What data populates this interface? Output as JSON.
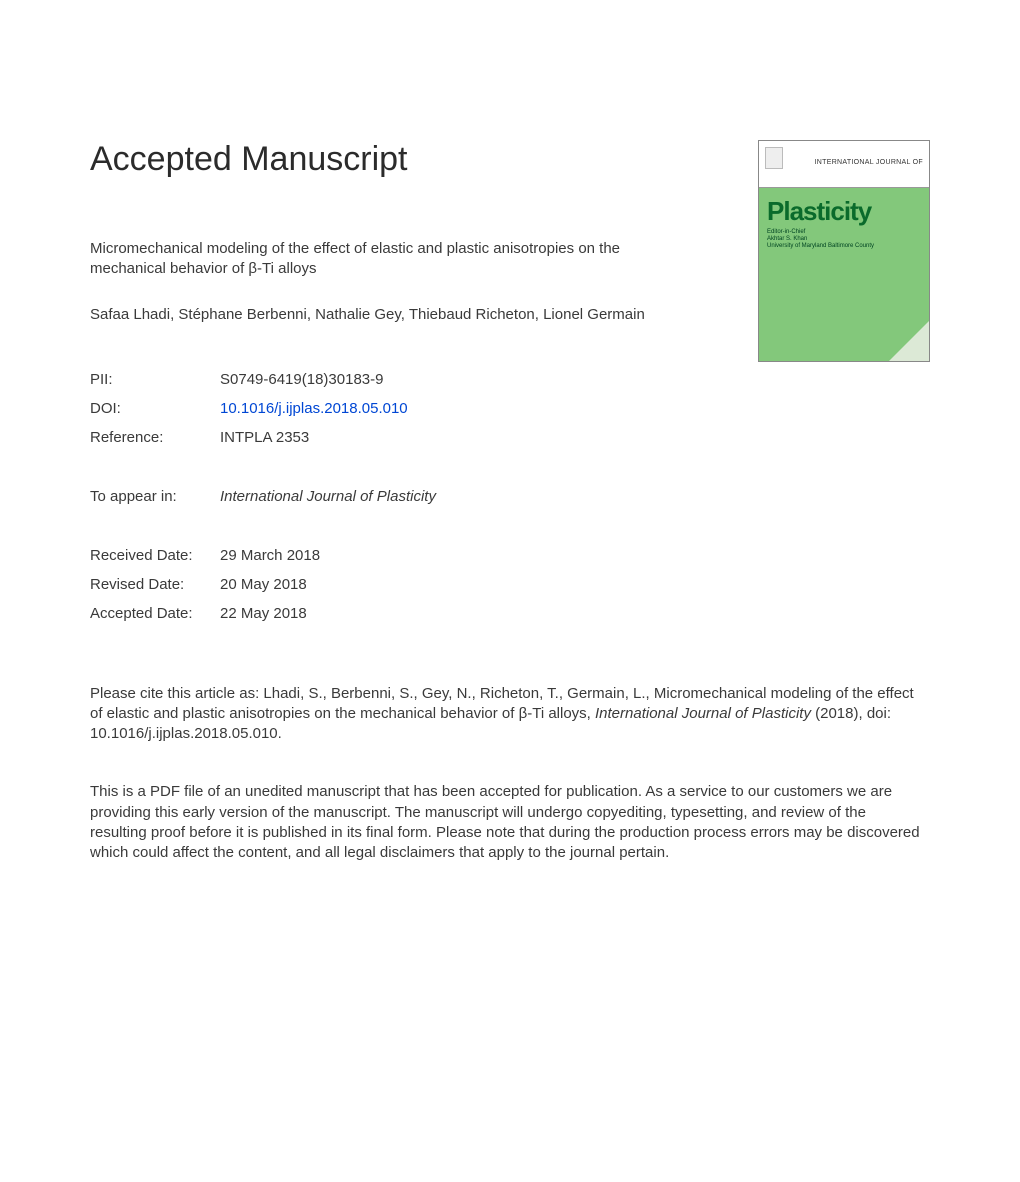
{
  "heading": "Accepted Manuscript",
  "article": {
    "title": "Micromechanical modeling of the effect of elastic and plastic anisotropies on the mechanical behavior of β-Ti alloys",
    "authors": "Safaa Lhadi, Stéphane Berbenni, Nathalie Gey, Thiebaud Richeton, Lionel Germain"
  },
  "meta": {
    "pii_label": "PII:",
    "pii_value": "S0749-6419(18)30183-9",
    "doi_label": "DOI:",
    "doi_value": "10.1016/j.ijplas.2018.05.010",
    "reference_label": "Reference:",
    "reference_value": "INTPLA 2353",
    "toappear_label": "To appear in:",
    "toappear_value": "International Journal of Plasticity",
    "received_label": "Received Date:",
    "received_value": "29 March 2018",
    "revised_label": "Revised Date:",
    "revised_value": "20 May 2018",
    "accepted_label": "Accepted Date:",
    "accepted_value": "22 May 2018"
  },
  "citation": {
    "prefix": "Please cite this article as: Lhadi, S., Berbenni, S., Gey, N., Richeton, T., Germain, L., Micromechanical modeling of the effect of elastic and plastic anisotropies on the mechanical behavior of β-Ti alloys, ",
    "journal": "International Journal of Plasticity",
    "suffix": " (2018), doi: 10.1016/j.ijplas.2018.05.010."
  },
  "disclaimer": "This is a PDF file of an unedited manuscript that has been accepted for publication. As a service to our customers we are providing this early version of the manuscript. The manuscript will undergo copyediting, typesetting, and review of the resulting proof before it is published in its final form. Please note that during the production process errors may be discovered which could affect the content, and all legal disclaimers that apply to the journal pertain.",
  "cover": {
    "journal_header": "INTERNATIONAL JOURNAL OF",
    "logo_text": "Plasticity",
    "editor_line1": "Editor-in-Chief",
    "editor_line2": "Akhtar S. Khan",
    "editor_line3": "University of Maryland Baltimore County",
    "background_color": "#83c87b",
    "logo_color": "#0a6b2b"
  },
  "colors": {
    "text": "#3a3a3a",
    "link": "#0047d4",
    "page_bg": "#ffffff"
  }
}
